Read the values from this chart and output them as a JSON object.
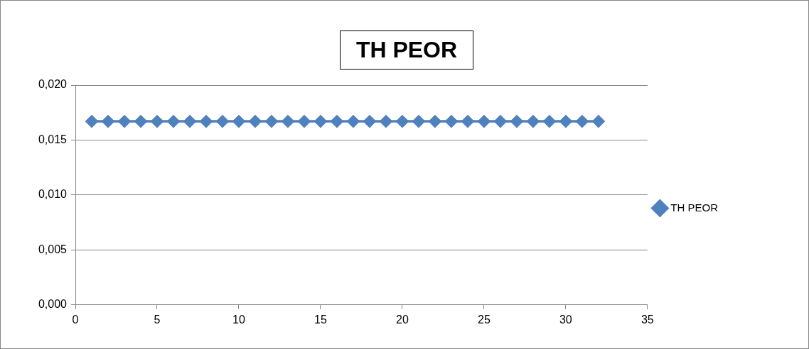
{
  "chart_data": {
    "type": "line",
    "title": "TH PEOR",
    "x": [
      1,
      2,
      3,
      4,
      5,
      6,
      7,
      8,
      9,
      10,
      11,
      12,
      13,
      14,
      15,
      16,
      17,
      18,
      19,
      20,
      21,
      22,
      23,
      24,
      25,
      26,
      27,
      28,
      29,
      30,
      31,
      32
    ],
    "series": [
      {
        "name": "TH PEOR",
        "color": "#4f81bd",
        "values": [
          0.0167,
          0.0167,
          0.0167,
          0.0167,
          0.0167,
          0.0167,
          0.0167,
          0.0167,
          0.0167,
          0.0167,
          0.0167,
          0.0167,
          0.0167,
          0.0167,
          0.0167,
          0.0167,
          0.0167,
          0.0167,
          0.0167,
          0.0167,
          0.0167,
          0.0167,
          0.0167,
          0.0167,
          0.0167,
          0.0167,
          0.0167,
          0.0167,
          0.0167,
          0.0167,
          0.0167,
          0.0167
        ]
      }
    ],
    "xlim": [
      0,
      35
    ],
    "xticks": [
      0,
      5,
      10,
      15,
      20,
      25,
      30,
      35
    ],
    "ylim": [
      0,
      0.02
    ],
    "yticks": [
      {
        "value": 0,
        "label": "0,000"
      },
      {
        "value": 0.005,
        "label": "0,005"
      },
      {
        "value": 0.01,
        "label": "0,010"
      },
      {
        "value": 0.015,
        "label": "0,015"
      },
      {
        "value": 0.02,
        "label": "0,020"
      }
    ],
    "grid": "y",
    "legend": "right",
    "marker": "diamond",
    "line_style": "solid"
  }
}
